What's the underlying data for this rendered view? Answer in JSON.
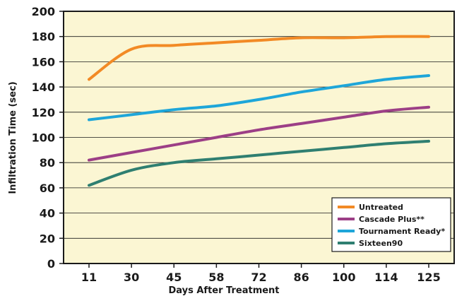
{
  "chart_data": {
    "type": "line",
    "title": "",
    "xlabel": "Days After Treatment",
    "ylabel": "Infiltration Time (sec)",
    "x": [
      11,
      30,
      45,
      58,
      72,
      86,
      100,
      114,
      125
    ],
    "ylim": [
      0,
      200
    ],
    "yticks": [
      "0",
      "20",
      "40",
      "60",
      "80",
      "100",
      "120",
      "140",
      "160",
      "180",
      "200"
    ],
    "grid": true,
    "background_color": "#fbf6d3",
    "legend_position": "bottom-right",
    "series": [
      {
        "name": "Untreated",
        "color": "#f28a25",
        "values": [
          146,
          170,
          173,
          175,
          177,
          179,
          179,
          180,
          180
        ]
      },
      {
        "name": "Cascade Plus**",
        "color": "#9c3f86",
        "values": [
          82,
          88,
          94,
          100,
          106,
          111,
          116,
          121,
          124
        ]
      },
      {
        "name": "Tournament Ready*",
        "color": "#1ea6d9",
        "values": [
          114,
          118,
          122,
          125,
          130,
          136,
          141,
          146,
          149
        ]
      },
      {
        "name": "Sixteen90",
        "color": "#2f7f71",
        "values": [
          62,
          74,
          80,
          83,
          86,
          89,
          92,
          95,
          97
        ]
      }
    ]
  }
}
